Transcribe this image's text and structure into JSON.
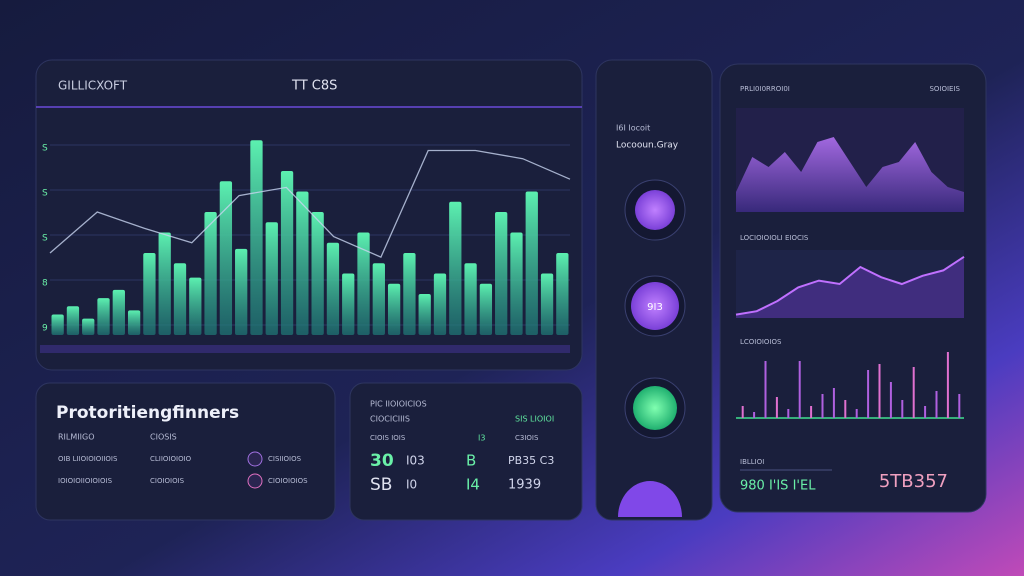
{
  "main_panel": {
    "brand": "GILLICXOFT",
    "header_right": "TT C8S",
    "axis_labels": [
      "S",
      "S",
      "S",
      "8",
      "9"
    ],
    "bars": [
      10,
      14,
      8,
      18,
      22,
      12,
      40,
      50,
      35,
      28,
      60,
      75,
      42,
      95,
      55,
      80,
      70,
      60,
      45,
      30,
      50,
      35,
      25,
      40,
      20,
      30,
      65,
      35,
      25,
      60,
      50,
      70,
      30,
      40
    ],
    "line": [
      40,
      60,
      52,
      45,
      68,
      72,
      48,
      38,
      90,
      90,
      86,
      76
    ]
  },
  "summary_panel": {
    "title": "Protoritiengfinners",
    "col_headers": [
      "RILMIIGO",
      "CIOSIS"
    ],
    "rows": [
      [
        "OIB LIIOIOIOIIOIS",
        "CLIIOIOIOIO",
        "CISIIOIOS"
      ],
      [
        "IOIOIOIIOIOIOIS",
        "CIOIOIOIS",
        "CIOIOIOIOS"
      ]
    ]
  },
  "stats_panel": {
    "header": "PIC IIOIOICIOS",
    "labels": [
      "CIOCICIIIS",
      "SIS LIOIOI"
    ],
    "col_labels": [
      "CIOIS IOIS",
      "I3",
      "C3IOIS"
    ],
    "row1": [
      "30",
      "I03",
      "B",
      "PB35 C3"
    ],
    "row2": [
      "SB",
      "I0",
      "I4",
      "1939"
    ]
  },
  "nav_panel": {
    "title": "I6I Iocoit",
    "subtitle": "Locooun.Gray",
    "button_label": "9I3"
  },
  "side_panel": {
    "header_left": "PRLI0I0RROI0I",
    "header_right": "SOIOIEIS",
    "area": [
      20,
      55,
      45,
      60,
      40,
      70,
      75,
      50,
      25,
      45,
      50,
      70,
      40,
      25,
      20
    ],
    "line_label": "LOCIOIOIOLI EIOCIS",
    "line": [
      5,
      10,
      25,
      45,
      55,
      50,
      75,
      60,
      50,
      62,
      70,
      90
    ],
    "spike_label": "LCOIOIOIOS",
    "spikes": [
      20,
      10,
      95,
      35,
      15,
      95,
      20,
      40,
      50,
      30,
      15,
      80,
      90,
      60,
      30,
      85,
      20,
      45,
      110,
      40
    ],
    "footer_label": "IBLLIOI",
    "footer_left": "980 I'IS I'EL",
    "footer_right": "5TB357"
  }
}
